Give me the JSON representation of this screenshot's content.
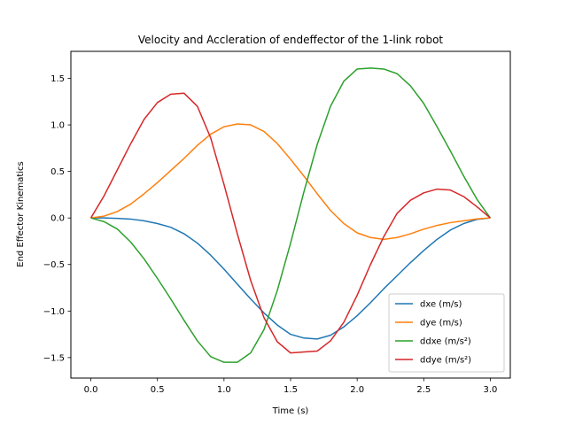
{
  "chart_data": {
    "type": "line",
    "title": "Velocity and Accleration of endeffector of the 1-link robot",
    "xlabel": "Time (s)",
    "ylabel": "End Effector Kinematics",
    "xlim": [
      -0.15,
      3.15
    ],
    "ylim": [
      -1.72,
      1.79
    ],
    "xticks": [
      0.0,
      0.5,
      1.0,
      1.5,
      2.0,
      2.5,
      3.0
    ],
    "xtick_labels": [
      "0.0",
      "0.5",
      "1.0",
      "1.5",
      "2.0",
      "2.5",
      "3.0"
    ],
    "yticks": [
      -1.5,
      -1.0,
      -0.5,
      0.0,
      0.5,
      1.0,
      1.5
    ],
    "ytick_labels": [
      "−1.5",
      "−1.0",
      "−0.5",
      "0.0",
      "0.5",
      "1.0",
      "1.5"
    ],
    "grid": false,
    "legend_position": "lower-right",
    "series": [
      {
        "name": "dxe (m/s)",
        "color": "#1f77b4",
        "x": [
          0.0,
          0.1,
          0.2,
          0.3,
          0.4,
          0.5,
          0.6,
          0.7,
          0.8,
          0.9,
          1.0,
          1.1,
          1.2,
          1.3,
          1.4,
          1.5,
          1.6,
          1.7,
          1.8,
          1.9,
          2.0,
          2.1,
          2.2,
          2.3,
          2.4,
          2.5,
          2.6,
          2.7,
          2.8,
          2.9,
          3.0
        ],
        "y": [
          0.0,
          0.0,
          -0.004,
          -0.012,
          -0.03,
          -0.06,
          -0.1,
          -0.17,
          -0.27,
          -0.4,
          -0.55,
          -0.71,
          -0.87,
          -1.02,
          -1.15,
          -1.25,
          -1.29,
          -1.3,
          -1.26,
          -1.17,
          -1.05,
          -0.91,
          -0.76,
          -0.62,
          -0.48,
          -0.35,
          -0.23,
          -0.13,
          -0.06,
          -0.015,
          0.0
        ]
      },
      {
        "name": "dye (m/s)",
        "color": "#ff7f0e",
        "x": [
          0.0,
          0.1,
          0.2,
          0.3,
          0.4,
          0.5,
          0.6,
          0.7,
          0.8,
          0.9,
          1.0,
          1.1,
          1.2,
          1.3,
          1.4,
          1.5,
          1.6,
          1.7,
          1.8,
          1.9,
          2.0,
          2.1,
          2.2,
          2.3,
          2.4,
          2.5,
          2.6,
          2.7,
          2.8,
          2.9,
          3.0
        ],
        "y": [
          0.0,
          0.02,
          0.07,
          0.15,
          0.26,
          0.38,
          0.51,
          0.64,
          0.78,
          0.9,
          0.98,
          1.01,
          1.0,
          0.93,
          0.8,
          0.63,
          0.45,
          0.26,
          0.08,
          -0.06,
          -0.16,
          -0.21,
          -0.23,
          -0.21,
          -0.17,
          -0.12,
          -0.08,
          -0.05,
          -0.03,
          -0.01,
          0.0
        ]
      },
      {
        "name": "ddxe (m/s²)",
        "color": "#2ca02c",
        "x": [
          0.0,
          0.1,
          0.2,
          0.3,
          0.4,
          0.5,
          0.6,
          0.7,
          0.8,
          0.9,
          1.0,
          1.1,
          1.2,
          1.3,
          1.4,
          1.5,
          1.6,
          1.7,
          1.8,
          1.9,
          2.0,
          2.1,
          2.2,
          2.3,
          2.4,
          2.5,
          2.6,
          2.7,
          2.8,
          2.9,
          3.0
        ],
        "y": [
          0.0,
          -0.04,
          -0.12,
          -0.26,
          -0.44,
          -0.65,
          -0.87,
          -1.1,
          -1.32,
          -1.49,
          -1.55,
          -1.55,
          -1.45,
          -1.2,
          -0.78,
          -0.27,
          0.28,
          0.79,
          1.2,
          1.47,
          1.6,
          1.61,
          1.6,
          1.55,
          1.42,
          1.23,
          0.98,
          0.72,
          0.45,
          0.2,
          0.0
        ]
      },
      {
        "name": "ddye (m/s²)",
        "color": "#d62728",
        "x": [
          0.0,
          0.1,
          0.2,
          0.3,
          0.4,
          0.5,
          0.6,
          0.7,
          0.8,
          0.9,
          1.0,
          1.1,
          1.2,
          1.3,
          1.4,
          1.5,
          1.6,
          1.7,
          1.8,
          1.9,
          2.0,
          2.1,
          2.2,
          2.3,
          2.4,
          2.5,
          2.6,
          2.7,
          2.8,
          2.9,
          3.0
        ],
        "y": [
          0.0,
          0.24,
          0.52,
          0.8,
          1.06,
          1.24,
          1.33,
          1.34,
          1.2,
          0.86,
          0.36,
          -0.17,
          -0.67,
          -1.07,
          -1.33,
          -1.45,
          -1.44,
          -1.43,
          -1.32,
          -1.12,
          -0.83,
          -0.5,
          -0.2,
          0.05,
          0.19,
          0.27,
          0.31,
          0.3,
          0.23,
          0.12,
          0.0
        ]
      }
    ]
  }
}
